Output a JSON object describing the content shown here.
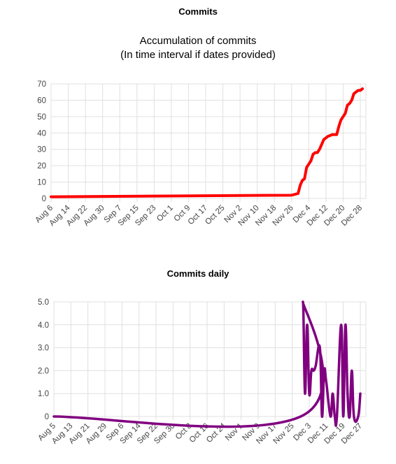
{
  "sections": {
    "commits_title": "Commits",
    "daily_title": "Commits daily"
  },
  "colors": {
    "accumulation_line": "#ff0000",
    "daily_line": "#800080",
    "grid": "#e0e0e0"
  },
  "chart_data": [
    {
      "type": "line",
      "title": "Accumulation of commits",
      "subtitle": "(In time interval if dates provided)",
      "xlabel": "",
      "ylabel": "",
      "ylim": [
        0,
        70
      ],
      "yticks": [
        "0",
        "10",
        "20",
        "30",
        "40",
        "50",
        "60",
        "70"
      ],
      "grid": true,
      "x_tick_labels": [
        "Aug 6",
        "Aug 14",
        "Aug 22",
        "Aug 30",
        "Sep 7",
        "Sep 15",
        "Sep 23",
        "Oct 1",
        "Oct 9",
        "Oct 17",
        "Oct 25",
        "Nov 2",
        "Nov 10",
        "Nov 18",
        "Nov 26",
        "Dec 4",
        "Dec 12",
        "Dec 20",
        "Dec 28"
      ],
      "series": [
        {
          "values": [
            {
              "x": "Aug 6",
              "y": 1
            },
            {
              "x": "Nov 26",
              "y": 2
            },
            {
              "x": "Nov 29",
              "y": 3
            },
            {
              "x": "Nov 30",
              "y": 8
            },
            {
              "x": "Dec 1",
              "y": 11
            },
            {
              "x": "Dec 2",
              "y": 12
            },
            {
              "x": "Dec 3",
              "y": 19
            },
            {
              "x": "Dec 4",
              "y": 21
            },
            {
              "x": "Dec 5",
              "y": 23
            },
            {
              "x": "Dec 6",
              "y": 27
            },
            {
              "x": "Dec 7",
              "y": 28
            },
            {
              "x": "Dec 8",
              "y": 28
            },
            {
              "x": "Dec 9",
              "y": 30
            },
            {
              "x": "Dec 10",
              "y": 33
            },
            {
              "x": "Dec 11",
              "y": 36
            },
            {
              "x": "Dec 12",
              "y": 37
            },
            {
              "x": "Dec 13",
              "y": 38
            },
            {
              "x": "Dec 15",
              "y": 39
            },
            {
              "x": "Dec 17",
              "y": 39
            },
            {
              "x": "Dec 18",
              "y": 44
            },
            {
              "x": "Dec 19",
              "y": 48
            },
            {
              "x": "Dec 20",
              "y": 50
            },
            {
              "x": "Dec 21",
              "y": 52
            },
            {
              "x": "Dec 22",
              "y": 57
            },
            {
              "x": "Dec 23",
              "y": 58
            },
            {
              "x": "Dec 24",
              "y": 60
            },
            {
              "x": "Dec 25",
              "y": 64
            },
            {
              "x": "Dec 26",
              "y": 65
            },
            {
              "x": "Dec 27",
              "y": 66
            },
            {
              "x": "Dec 28",
              "y": 66
            },
            {
              "x": "Dec 29",
              "y": 67
            }
          ]
        }
      ]
    },
    {
      "type": "line",
      "title": "",
      "xlabel": "",
      "ylabel": "",
      "ylim": [
        0,
        5
      ],
      "yticks": [
        "0",
        "1.0",
        "2.0",
        "3.0",
        "4.0",
        "5.0"
      ],
      "grid": true,
      "x_tick_labels": [
        "Aug 5",
        "Aug 13",
        "Aug 21",
        "Aug 29",
        "Sep 6",
        "Sep 14",
        "Sep 22",
        "Sep 30",
        "Oct 8",
        "Oct 16",
        "Oct 24",
        "Nov 1",
        "Nov 9",
        "Nov 17",
        "Nov 25",
        "Dec 3",
        "Dec 11",
        "Dec 19",
        "Dec 27"
      ],
      "series": [
        {
          "values": [
            {
              "x": "Aug 5",
              "y": 0
            },
            {
              "x": "Nov 29",
              "y": 0
            },
            {
              "x": "Nov 30",
              "y": 5
            },
            {
              "x": "Dec 1",
              "y": 1
            },
            {
              "x": "Dec 2",
              "y": 4
            },
            {
              "x": "Dec 3",
              "y": 1
            },
            {
              "x": "Dec 4",
              "y": 2
            },
            {
              "x": "Dec 5",
              "y": 2
            },
            {
              "x": "Dec 6",
              "y": 2.2
            },
            {
              "x": "Dec 8",
              "y": 3
            },
            {
              "x": "Dec 9",
              "y": 0
            },
            {
              "x": "Dec 10",
              "y": 2
            },
            {
              "x": "Dec 11",
              "y": 1.5
            },
            {
              "x": "Dec 13",
              "y": 0
            },
            {
              "x": "Dec 14",
              "y": 1
            },
            {
              "x": "Dec 15",
              "y": 0
            },
            {
              "x": "Dec 16",
              "y": 0
            },
            {
              "x": "Dec 18",
              "y": 4
            },
            {
              "x": "Dec 19",
              "y": 0
            },
            {
              "x": "Dec 20",
              "y": 4
            },
            {
              "x": "Dec 21",
              "y": 1
            },
            {
              "x": "Dec 22",
              "y": 0
            },
            {
              "x": "Dec 23",
              "y": 2
            },
            {
              "x": "Dec 24",
              "y": 0
            },
            {
              "x": "Dec 26",
              "y": 0
            },
            {
              "x": "Dec 27",
              "y": 1
            }
          ]
        }
      ]
    }
  ]
}
